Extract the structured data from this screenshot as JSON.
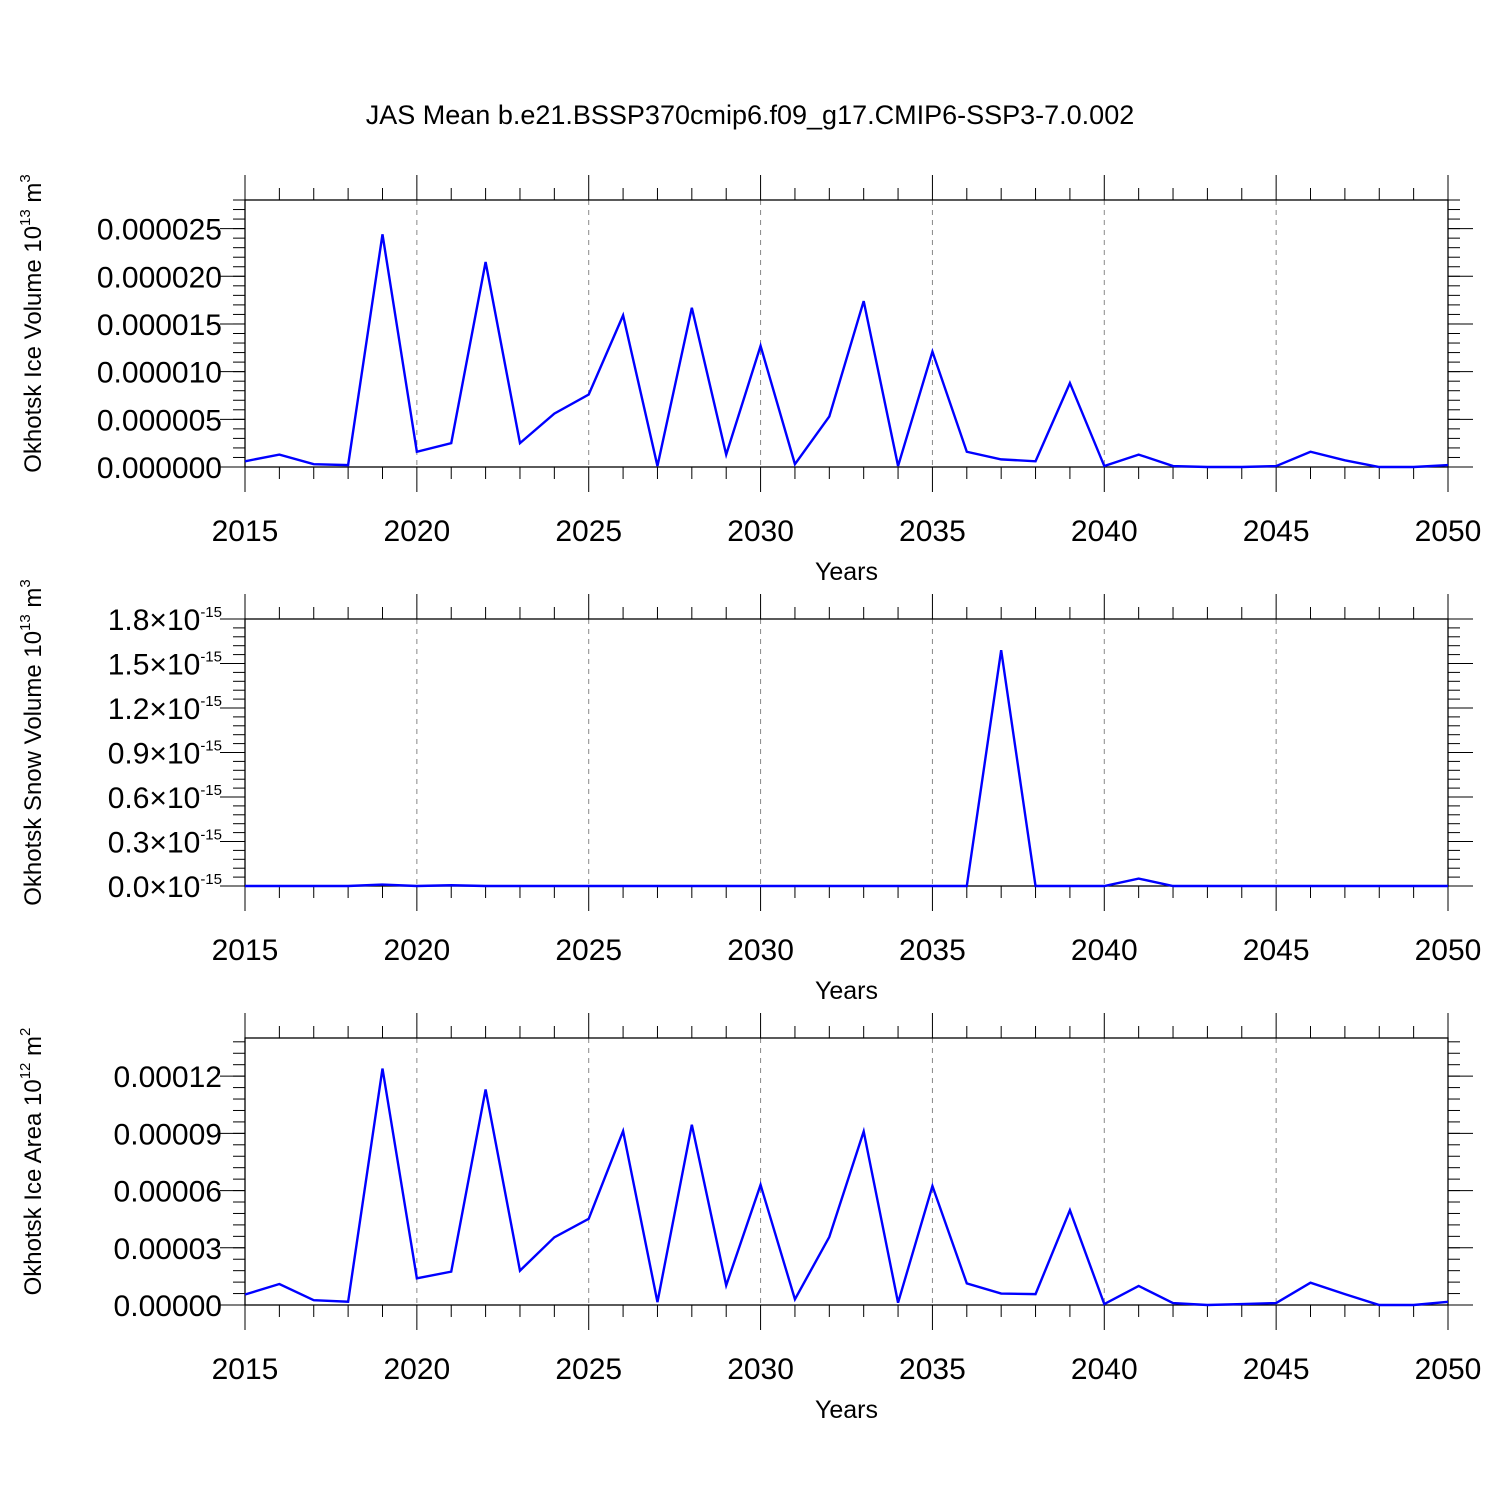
{
  "title": "JAS Mean b.e21.BSSP370cmip6.f09_g17.CMIP6-SSP3-7.0.002",
  "colors": {
    "line": "#0000ff",
    "frame": "#000000",
    "grid": "#888888"
  },
  "chart_data": [
    {
      "type": "line",
      "ylabel": {
        "prefix": "Okhotsk Ice Volume 10",
        "exp": "13",
        "mid": " m",
        "unit_exp": "3"
      },
      "xlabel": "Years",
      "xlim": [
        2015,
        2050
      ],
      "ylim": [
        0,
        2.8e-05
      ],
      "x_ticks": [
        2015,
        2020,
        2025,
        2030,
        2035,
        2040,
        2045,
        2050
      ],
      "x_tick_labels": [
        "2015",
        "2020",
        "2025",
        "2030",
        "2035",
        "2040",
        "2045",
        "2050"
      ],
      "y_ticks": [
        0,
        5e-06,
        1e-05,
        1.5e-05,
        2e-05,
        2.5e-05
      ],
      "y_tick_labels": [
        "0.000000",
        "0.000005",
        "0.000010",
        "0.000015",
        "0.000020",
        "0.000025"
      ],
      "grid": "vertical dashed at major x ticks",
      "x": [
        2015,
        2016,
        2017,
        2018,
        2019,
        2020,
        2021,
        2022,
        2023,
        2024,
        2025,
        2026,
        2027,
        2028,
        2029,
        2030,
        2031,
        2032,
        2033,
        2034,
        2035,
        2036,
        2037,
        2038,
        2039,
        2040,
        2041,
        2042,
        2043,
        2044,
        2045,
        2046,
        2047,
        2048,
        2049,
        2050
      ],
      "values": [
        6e-07,
        1.3e-06,
        3e-07,
        2e-07,
        2.44e-05,
        1.6e-06,
        2.5e-06,
        2.15e-05,
        2.5e-06,
        5.6e-06,
        7.6e-06,
        1.59e-05,
        1e-07,
        1.67e-05,
        1.3e-06,
        1.27e-05,
        3e-07,
        5.3e-06,
        1.74e-05,
        1e-07,
        1.21e-05,
        1.6e-06,
        8e-07,
        6e-07,
        8.8e-06,
        1e-07,
        1.3e-06,
        1e-07,
        0.0,
        0.0,
        1e-07,
        1.6e-06,
        7e-07,
        0.0,
        0.0,
        2e-07
      ]
    },
    {
      "type": "line",
      "ylabel": {
        "prefix": "Okhotsk Snow Volume 10",
        "exp": "13",
        "mid": " m",
        "unit_exp": "3"
      },
      "xlabel": "Years",
      "xlim": [
        2015,
        2050
      ],
      "ylim": [
        0,
        1.8e-15
      ],
      "x_ticks": [
        2015,
        2020,
        2025,
        2030,
        2035,
        2040,
        2045,
        2050
      ],
      "x_tick_labels": [
        "2015",
        "2020",
        "2025",
        "2030",
        "2035",
        "2040",
        "2045",
        "2050"
      ],
      "y_ticks": [
        0,
        3e-16,
        6e-16,
        9e-16,
        1.2e-15,
        1.5e-15,
        1.8e-15
      ],
      "y_tick_labels": [
        {
          "mant": "0.0",
          "times": "×",
          "base": "10",
          "exp": "-15"
        },
        {
          "mant": "0.3",
          "times": "×",
          "base": "10",
          "exp": "-15"
        },
        {
          "mant": "0.6",
          "times": "×",
          "base": "10",
          "exp": "-15"
        },
        {
          "mant": "0.9",
          "times": "×",
          "base": "10",
          "exp": "-15"
        },
        {
          "mant": "1.2",
          "times": "×",
          "base": "10",
          "exp": "-15"
        },
        {
          "mant": "1.5",
          "times": "×",
          "base": "10",
          "exp": "-15"
        },
        {
          "mant": "1.8",
          "times": "×",
          "base": "10",
          "exp": "-15"
        }
      ],
      "grid": "vertical dashed at major x ticks",
      "x": [
        2015,
        2016,
        2017,
        2018,
        2019,
        2020,
        2021,
        2022,
        2023,
        2024,
        2025,
        2026,
        2027,
        2028,
        2029,
        2030,
        2031,
        2032,
        2033,
        2034,
        2035,
        2036,
        2037,
        2038,
        2039,
        2040,
        2041,
        2042,
        2043,
        2044,
        2045,
        2046,
        2047,
        2048,
        2049,
        2050
      ],
      "values": [
        0,
        0,
        0,
        0,
        1e-17,
        0,
        5e-18,
        0,
        0,
        0,
        0,
        0,
        0,
        0,
        0,
        0,
        0,
        0,
        0,
        0,
        0,
        0,
        1.59e-15,
        0,
        0,
        0,
        5e-17,
        0,
        0,
        0,
        0,
        0,
        0,
        0,
        0,
        0
      ]
    },
    {
      "type": "line",
      "ylabel": {
        "prefix": "Okhotsk Ice Area 10",
        "exp": "12",
        "mid": " m",
        "unit_exp": "2"
      },
      "xlabel": "Years",
      "xlim": [
        2015,
        2050
      ],
      "ylim": [
        0,
        0.00014
      ],
      "x_ticks": [
        2015,
        2020,
        2025,
        2030,
        2035,
        2040,
        2045,
        2050
      ],
      "x_tick_labels": [
        "2015",
        "2020",
        "2025",
        "2030",
        "2035",
        "2040",
        "2045",
        "2050"
      ],
      "y_ticks": [
        0,
        3e-05,
        6e-05,
        9e-05,
        0.00012
      ],
      "y_tick_labels": [
        "0.00000",
        "0.00003",
        "0.00006",
        "0.00009",
        "0.00012"
      ],
      "grid": "vertical dashed at major x ticks",
      "x": [
        2015,
        2016,
        2017,
        2018,
        2019,
        2020,
        2021,
        2022,
        2023,
        2024,
        2025,
        2026,
        2027,
        2028,
        2029,
        2030,
        2031,
        2032,
        2033,
        2034,
        2035,
        2036,
        2037,
        2038,
        2039,
        2040,
        2041,
        2042,
        2043,
        2044,
        2045,
        2046,
        2047,
        2048,
        2049,
        2050
      ],
      "values": [
        5.5e-06,
        1.1e-05,
        2.5e-06,
        1.7e-06,
        0.000124,
        1.4e-05,
        1.75e-05,
        0.000113,
        1.8e-05,
        3.55e-05,
        4.52e-05,
        9.12e-05,
        1.5e-06,
        9.45e-05,
        1.03e-05,
        6.3e-05,
        3e-06,
        3.57e-05,
        9.1e-05,
        1.2e-06,
        6.24e-05,
        1.13e-05,
        6e-06,
        5.7e-06,
        4.97e-05,
        5e-07,
        1e-05,
        1e-06,
        0.0,
        5e-07,
        1e-06,
        1.17e-05,
        5.7e-06,
        0.0,
        0.0,
        1.7e-06
      ]
    }
  ]
}
